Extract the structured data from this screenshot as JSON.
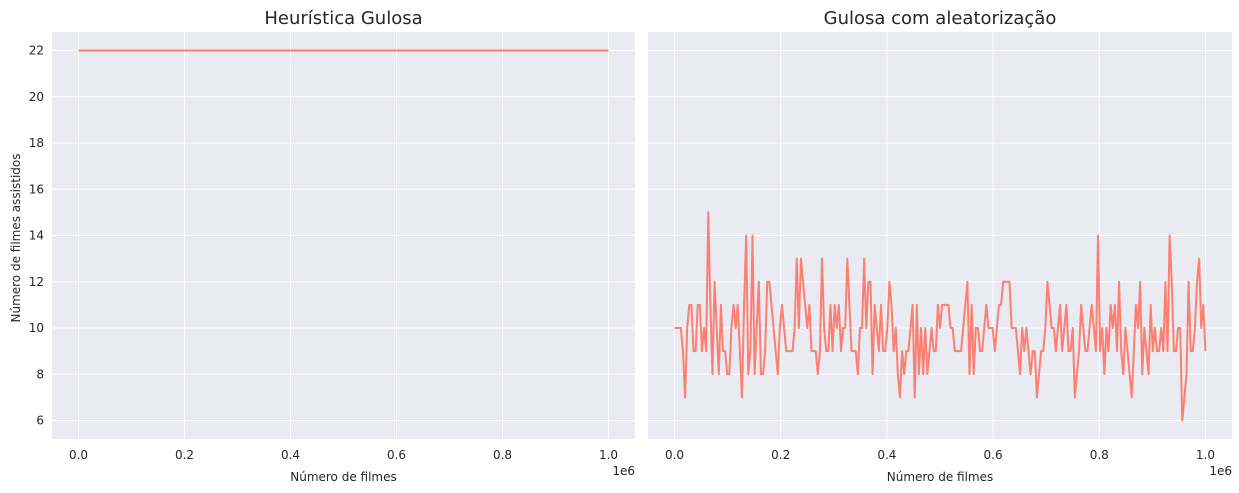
{
  "figure": {
    "ylabel": "Número de filmes assistidos"
  },
  "style": {
    "plot_bg": "#eaeaf2",
    "grid": "#ffffff",
    "line": "#fa8072",
    "text": "#262626"
  },
  "chart_data": [
    {
      "type": "line",
      "title": "Heurística Gulosa",
      "xlabel": "Número de filmes",
      "ylabel": "Número de filmes assistidos",
      "x_offset_label": "1e6",
      "xlim": [
        -0.05,
        1.05
      ],
      "ylim": [
        5.2,
        22.8
      ],
      "xticks": [
        0.0,
        0.2,
        0.4,
        0.6,
        0.8,
        1.0
      ],
      "xtick_labels": [
        "0.0",
        "0.2",
        "0.4",
        "0.6",
        "0.8",
        "1.0"
      ],
      "yticks": [
        6,
        8,
        10,
        12,
        14,
        16,
        18,
        20,
        22
      ],
      "ytick_labels": [
        "6",
        "8",
        "10",
        "12",
        "14",
        "16",
        "18",
        "20",
        "22"
      ],
      "grid": true,
      "series": [
        {
          "x": [
            0.0,
            1.0
          ],
          "y": [
            22,
            22
          ]
        }
      ]
    },
    {
      "type": "line",
      "title": "Gulosa com aleatorização",
      "xlabel": "Número de filmes",
      "x_offset_label": "1e6",
      "xlim": [
        -0.05,
        1.05
      ],
      "ylim": [
        5.2,
        22.8
      ],
      "xticks": [
        0.0,
        0.2,
        0.4,
        0.6,
        0.8,
        1.0
      ],
      "xtick_labels": [
        "0.0",
        "0.2",
        "0.4",
        "0.6",
        "0.8",
        "1.0"
      ],
      "yticks": [
        6,
        8,
        10,
        12,
        14,
        16,
        18,
        20,
        22
      ],
      "grid": true,
      "series": [
        {
          "x_start": 0.0,
          "x_end": 1.0,
          "y": [
            10,
            10,
            10,
            10,
            9,
            7,
            10,
            11,
            11,
            9,
            9,
            11,
            11,
            9,
            10,
            9,
            15,
            11,
            8,
            12,
            10,
            8,
            11,
            9,
            9,
            8,
            8,
            10,
            11,
            10,
            11,
            9,
            7,
            11,
            14,
            8,
            9,
            14,
            8,
            10,
            12,
            8,
            8,
            9,
            12,
            12,
            11,
            10,
            9,
            8,
            10,
            11,
            10,
            9,
            9,
            9,
            9,
            10,
            13,
            10,
            13,
            12,
            11,
            10,
            11,
            9,
            9,
            9,
            8,
            9,
            13,
            10,
            9,
            9,
            11,
            9,
            11,
            10,
            11,
            9,
            10,
            10,
            13,
            11,
            9,
            9,
            9,
            8,
            10,
            10,
            13,
            10,
            12,
            12,
            8,
            11,
            10,
            9,
            11,
            9,
            9,
            10,
            12,
            11,
            9,
            10,
            8,
            7,
            9,
            8,
            9,
            9,
            10,
            11,
            7,
            11,
            8,
            10,
            8,
            10,
            8,
            9,
            10,
            9,
            9,
            11,
            10,
            11,
            11,
            11,
            11,
            10,
            10,
            9,
            9,
            9,
            9,
            10,
            11,
            12,
            8,
            11,
            8,
            10,
            10,
            9,
            9,
            10,
            11,
            10,
            10,
            10,
            9,
            10,
            11,
            11,
            12,
            12,
            12,
            12,
            10,
            10,
            10,
            9,
            8,
            10,
            9,
            10,
            9,
            8,
            9,
            9,
            7,
            8,
            9,
            9,
            10,
            12,
            11,
            10,
            10,
            9,
            10,
            11,
            9,
            10,
            11,
            9,
            9,
            10,
            7,
            8,
            9,
            11,
            10,
            9,
            9,
            10,
            11,
            10,
            9,
            14,
            9,
            10,
            8,
            10,
            9,
            11,
            10,
            11,
            9,
            12,
            9,
            8,
            10,
            9,
            8,
            7,
            9,
            11,
            10,
            12,
            8,
            10,
            9,
            8,
            11,
            9,
            10,
            9,
            9,
            10,
            9,
            12,
            9,
            14,
            12,
            9,
            9,
            10,
            10,
            6,
            7,
            8,
            12,
            9,
            9,
            10,
            12,
            13,
            10,
            11,
            9
          ]
        }
      ]
    }
  ]
}
